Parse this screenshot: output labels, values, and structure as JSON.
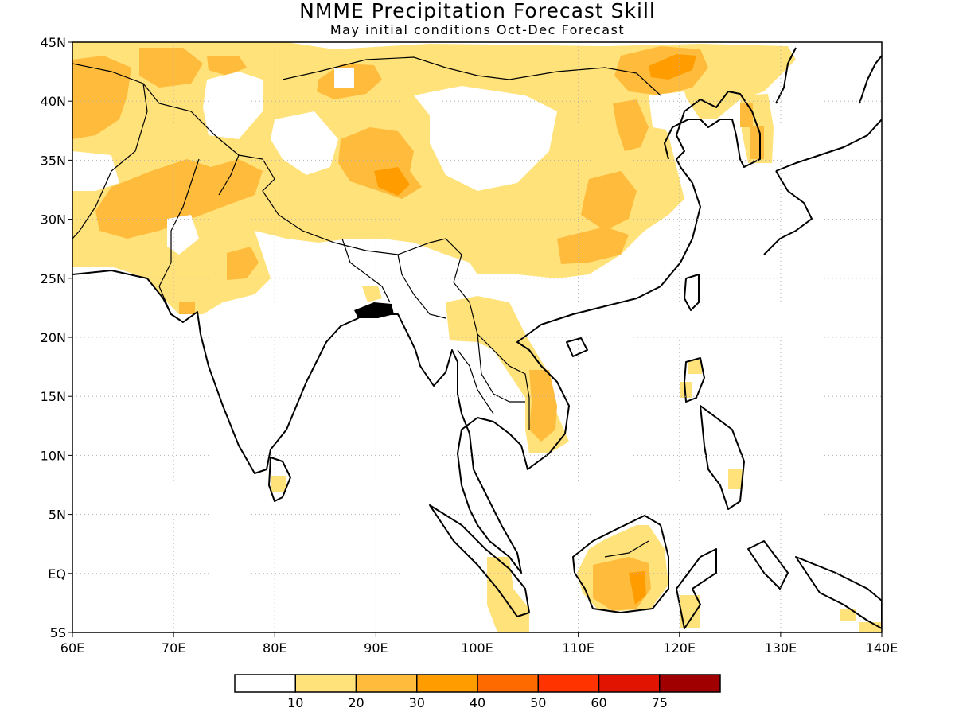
{
  "title": "NMME Precipitation Forecast Skill",
  "subtitle": "May initial conditions  Oct-Dec Forecast",
  "map": {
    "lon_range": [
      60,
      140
    ],
    "lat_range": [
      -5,
      45
    ],
    "x_tick_labels": [
      {
        "lon": 60,
        "label": "60E"
      },
      {
        "lon": 70,
        "label": "70E"
      },
      {
        "lon": 80,
        "label": "80E"
      },
      {
        "lon": 90,
        "label": "90E"
      },
      {
        "lon": 100,
        "label": "100E"
      },
      {
        "lon": 110,
        "label": "110E"
      },
      {
        "lon": 120,
        "label": "120E"
      },
      {
        "lon": 130,
        "label": "130E"
      },
      {
        "lon": 140,
        "label": "140E"
      }
    ],
    "y_tick_labels": [
      {
        "lat": 45,
        "label": "45N"
      },
      {
        "lat": 40,
        "label": "40N"
      },
      {
        "lat": 35,
        "label": "35N"
      },
      {
        "lat": 30,
        "label": "30N"
      },
      {
        "lat": 25,
        "label": "25N"
      },
      {
        "lat": 20,
        "label": "20N"
      },
      {
        "lat": 15,
        "label": "15N"
      },
      {
        "lat": 10,
        "label": "10N"
      },
      {
        "lat": 5,
        "label": "5N"
      },
      {
        "lat": 0,
        "label": "EQ"
      },
      {
        "lat": -5,
        "label": "5S"
      }
    ],
    "grid": "dotted"
  },
  "legend": {
    "colors": [
      "#ffffff",
      "#ffe27a",
      "#ffbb3c",
      "#ff9d00",
      "#ff6a00",
      "#ff3300",
      "#e01400",
      "#a00000"
    ],
    "labels": [
      "10",
      "20",
      "30",
      "40",
      "50",
      "60",
      "75"
    ]
  }
}
